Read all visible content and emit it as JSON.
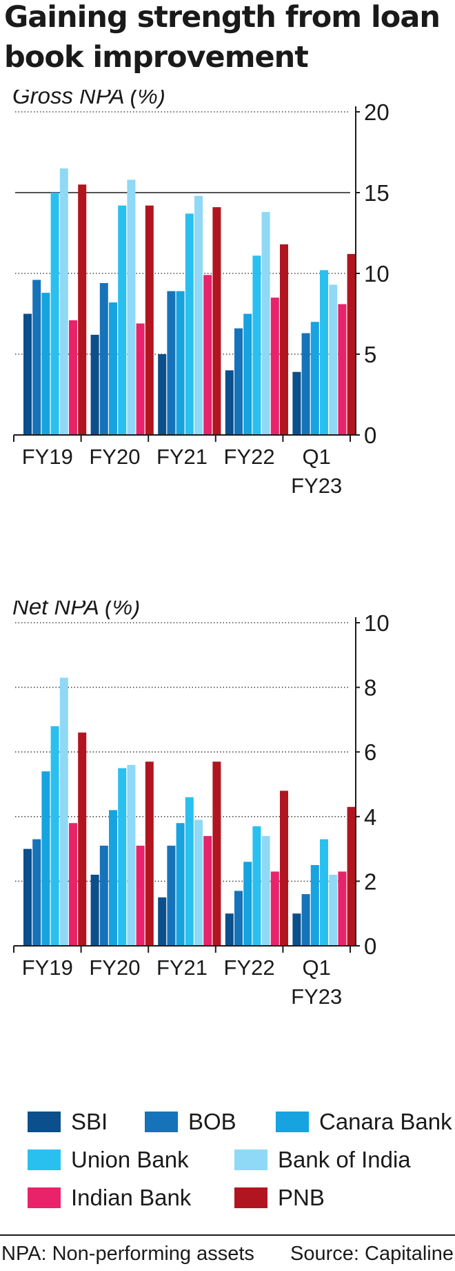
{
  "title": "Gaining strength from loan book improvement",
  "colors": {
    "SBI": "#0b4f8c",
    "BOB": "#1673b9",
    "Canara Bank": "#16a3df",
    "Union Bank": "#29c0ef",
    "Bank of India": "#8fd8f6",
    "Indian Bank": "#e8236a",
    "PNB": "#b1151f"
  },
  "legend": {
    "items": [
      {
        "label": "SBI",
        "color": "#0b4f8c"
      },
      {
        "label": "BOB",
        "color": "#1673b9"
      },
      {
        "label": "Canara Bank",
        "color": "#16a3df"
      },
      {
        "label": "Union Bank",
        "color": "#29c0ef"
      },
      {
        "label": "Bank of India",
        "color": "#8fd8f6"
      },
      {
        "label": "Indian Bank",
        "color": "#e8236a"
      },
      {
        "label": "PNB",
        "color": "#b1151f"
      }
    ]
  },
  "footnote": "NPA: Non-performing assets",
  "source": "Source: Capitaline",
  "chart_data": [
    {
      "type": "bar",
      "title": "Gross NPA (%)",
      "categories": [
        [
          "FY19"
        ],
        [
          "FY20"
        ],
        [
          "FY21"
        ],
        [
          "FY22"
        ],
        [
          "Q1",
          "FY23"
        ]
      ],
      "ylim": [
        0,
        20
      ],
      "yticks": [
        0,
        5,
        10,
        15,
        20
      ],
      "grid": "dotted horizontal",
      "highlight_line": 15,
      "axis_side": "right",
      "series": [
        {
          "name": "SBI",
          "values": [
            7.5,
            6.2,
            5.0,
            4.0,
            3.9
          ]
        },
        {
          "name": "BOB",
          "values": [
            9.6,
            9.4,
            8.9,
            6.6,
            6.3
          ]
        },
        {
          "name": "Canara Bank",
          "values": [
            8.8,
            8.2,
            8.9,
            7.5,
            7.0
          ]
        },
        {
          "name": "Union Bank",
          "values": [
            15.0,
            14.2,
            13.7,
            11.1,
            10.2
          ]
        },
        {
          "name": "Bank of India",
          "values": [
            16.5,
            15.8,
            14.8,
            13.8,
            9.3
          ]
        },
        {
          "name": "Indian Bank",
          "values": [
            7.1,
            6.9,
            9.9,
            8.5,
            8.1
          ]
        },
        {
          "name": "PNB",
          "values": [
            15.5,
            14.2,
            14.1,
            11.8,
            11.2
          ]
        }
      ]
    },
    {
      "type": "bar",
      "title": "Net NPA (%)",
      "categories": [
        [
          "FY19"
        ],
        [
          "FY20"
        ],
        [
          "FY21"
        ],
        [
          "FY22"
        ],
        [
          "Q1",
          "FY23"
        ]
      ],
      "ylim": [
        0,
        10
      ],
      "yticks": [
        0,
        2,
        4,
        6,
        8,
        10
      ],
      "grid": "dotted horizontal",
      "axis_side": "right",
      "series": [
        {
          "name": "SBI",
          "values": [
            3.0,
            2.2,
            1.5,
            1.0,
            1.0
          ]
        },
        {
          "name": "BOB",
          "values": [
            3.3,
            3.1,
            3.1,
            1.7,
            1.6
          ]
        },
        {
          "name": "Canara Bank",
          "values": [
            5.4,
            4.2,
            3.8,
            2.6,
            2.5
          ]
        },
        {
          "name": "Union Bank",
          "values": [
            6.8,
            5.5,
            4.6,
            3.7,
            3.3
          ]
        },
        {
          "name": "Bank of India",
          "values": [
            8.3,
            5.6,
            3.9,
            3.4,
            2.2
          ]
        },
        {
          "name": "Indian Bank",
          "values": [
            3.8,
            3.1,
            3.4,
            2.3,
            2.3
          ]
        },
        {
          "name": "PNB",
          "values": [
            6.6,
            5.7,
            5.7,
            4.8,
            4.3
          ]
        }
      ]
    }
  ]
}
